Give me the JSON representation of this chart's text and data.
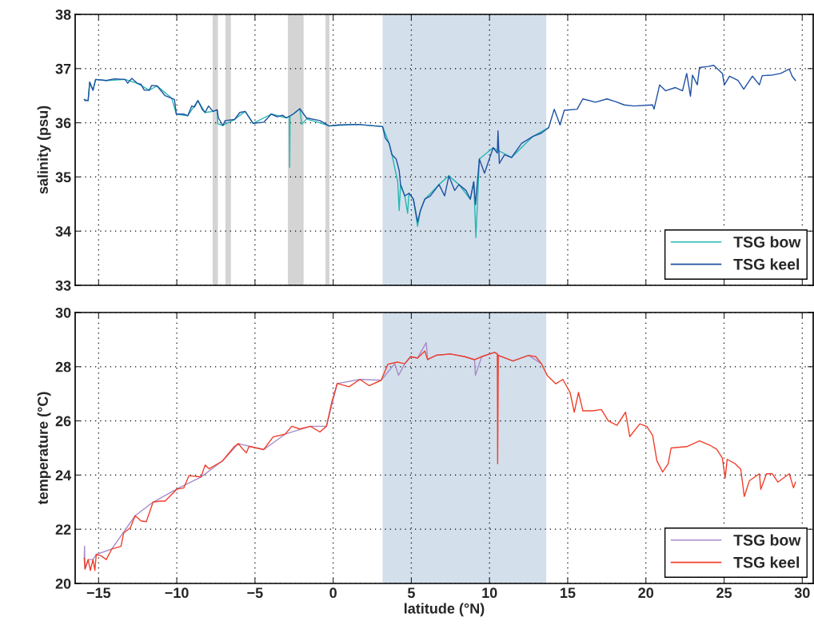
{
  "chart_data": [
    {
      "type": "line",
      "ylabel": "salinity (psu)",
      "xlim": [
        -16.5,
        30.7
      ],
      "ylim": [
        33,
        38
      ],
      "xticks": [
        -15,
        -10,
        -5,
        0,
        5,
        10,
        15,
        20,
        25,
        30
      ],
      "yticks": [
        33,
        34,
        35,
        36,
        37,
        38
      ],
      "tick_labels": "y",
      "grid": true,
      "legend": "bottom right",
      "line_style": "solid",
      "bands": [
        {
          "axis": "x",
          "from": -7.71,
          "to": -7.37,
          "color": "#d4d4d4"
        },
        {
          "axis": "x",
          "from": -6.89,
          "to": -6.54,
          "color": "#d4d4d4"
        },
        {
          "axis": "x",
          "from": -2.9,
          "to": -1.89,
          "color": "#d4d4d4"
        },
        {
          "axis": "x",
          "from": -0.49,
          "to": -0.24,
          "color": "#d4d4d4"
        },
        {
          "axis": "x",
          "from": 3.16,
          "to": 13.63,
          "color": "#d4dfec"
        }
      ],
      "series": [
        {
          "name": "TSG bow",
          "color": "#22b8b0",
          "x": [
            -15.92,
            -15.67,
            -15.57,
            -15.36,
            -15.19,
            -14.5,
            -13.31,
            -12.54,
            -11.77,
            -11.26,
            -10.32,
            -10.03,
            -9.3,
            -8.65,
            -8.19,
            -7.68,
            -7.42,
            -7.38,
            -7.05,
            -6.31,
            -5.63,
            -5.12,
            -3.96,
            -2.99,
            -2.8,
            -2.78,
            -2.76,
            -2.56,
            -2.13,
            -2.01,
            -1.71,
            -0.85,
            -0.26,
            1.54,
            3.16,
            3.58,
            3.76,
            4.13,
            4.22,
            4.31,
            4.58,
            4.76,
            4.85,
            5.13,
            5.4,
            5.58,
            5.86,
            6.77,
            7.4,
            8.04,
            8.77,
            8.99,
            9.13,
            9.35,
            10.23,
            11.41,
            12.78,
            13.78
          ],
          "values": [
            36.43,
            36.41,
            36.75,
            36.6,
            36.8,
            36.78,
            36.8,
            36.73,
            36.6,
            36.68,
            36.45,
            36.16,
            36.13,
            36.41,
            36.19,
            36.21,
            36.24,
            35.98,
            35.95,
            36.06,
            36.21,
            35.99,
            36.16,
            36.09,
            36.12,
            35.18,
            36.12,
            36.16,
            36.26,
            35.97,
            36.07,
            36.0,
            35.94,
            35.97,
            35.93,
            35.62,
            35.41,
            34.91,
            34.38,
            34.86,
            34.65,
            34.33,
            34.7,
            34.59,
            34.09,
            34.38,
            34.59,
            34.86,
            35.02,
            34.86,
            34.59,
            34.91,
            33.88,
            35.33,
            35.54,
            35.36,
            35.75,
            35.91
          ]
        },
        {
          "name": "TSG keel",
          "color": "#1e51a2",
          "x": [
            -15.92,
            -15.87,
            -15.67,
            -15.57,
            -15.36,
            -15.19,
            -14.5,
            -13.99,
            -13.31,
            -13.14,
            -12.88,
            -12.54,
            -12.29,
            -12.08,
            -11.77,
            -11.6,
            -11.26,
            -10.75,
            -10.32,
            -10.15,
            -10.03,
            -9.56,
            -9.3,
            -9.04,
            -8.87,
            -8.65,
            -8.36,
            -8.19,
            -7.97,
            -7.68,
            -7.42,
            -7.34,
            -7.05,
            -6.91,
            -6.31,
            -5.97,
            -5.63,
            -5.12,
            -4.44,
            -3.96,
            -3.58,
            -3.24,
            -2.99,
            -2.56,
            -2.13,
            -1.71,
            -0.85,
            -0.26,
            0.34,
            1.54,
            3.16,
            3.33,
            3.58,
            3.76,
            4.03,
            4.22,
            4.31,
            4.58,
            4.85,
            5.13,
            5.4,
            5.58,
            5.86,
            6.22,
            6.77,
            7.13,
            7.4,
            7.77,
            8.04,
            8.5,
            8.77,
            8.99,
            9.1,
            9.35,
            9.68,
            10.23,
            10.5,
            10.54,
            10.63,
            10.96,
            11.41,
            12.05,
            12.78,
            13.32,
            13.78,
            14.14,
            14.51,
            14.78,
            15.6,
            15.97,
            16.78,
            17.51,
            18.06,
            18.61,
            19.24,
            20.43,
            20.52,
            20.88,
            21.25,
            21.89,
            22.34,
            22.61,
            22.85,
            22.98,
            23.29,
            23.43,
            23.98,
            24.34,
            24.89,
            25.02,
            25.35,
            25.89,
            26.26,
            26.81,
            27.26,
            27.44,
            28.08,
            28.62,
            29.17,
            29.35,
            29.57
          ],
          "values": [
            36.43,
            36.41,
            36.41,
            36.75,
            36.6,
            36.8,
            36.78,
            36.81,
            36.8,
            36.73,
            36.82,
            36.73,
            36.71,
            36.6,
            36.6,
            36.69,
            36.68,
            36.5,
            36.45,
            36.43,
            36.16,
            36.16,
            36.13,
            36.31,
            36.29,
            36.41,
            36.24,
            36.19,
            36.31,
            36.21,
            36.24,
            36.09,
            35.95,
            36.04,
            36.06,
            36.19,
            36.21,
            35.99,
            36.01,
            36.16,
            36.11,
            36.14,
            36.09,
            36.16,
            36.26,
            36.09,
            36.04,
            35.94,
            35.96,
            35.97,
            35.93,
            35.72,
            35.62,
            35.41,
            35.33,
            35.12,
            34.86,
            34.65,
            34.7,
            34.59,
            34.17,
            34.38,
            34.59,
            34.65,
            34.86,
            34.65,
            35.02,
            34.75,
            34.86,
            34.75,
            34.59,
            34.91,
            34.49,
            35.33,
            35.07,
            35.54,
            35.44,
            35.85,
            35.25,
            35.41,
            35.36,
            35.62,
            35.75,
            35.81,
            35.91,
            36.25,
            35.96,
            36.23,
            36.25,
            36.44,
            36.38,
            36.44,
            36.39,
            36.33,
            36.31,
            36.33,
            36.25,
            36.7,
            36.59,
            36.65,
            36.59,
            36.91,
            36.49,
            36.88,
            36.7,
            37.02,
            37.04,
            37.06,
            36.91,
            36.7,
            36.86,
            36.78,
            36.62,
            36.86,
            36.7,
            36.87,
            36.88,
            36.91,
            36.99,
            36.86,
            36.78
          ]
        }
      ]
    },
    {
      "type": "line",
      "xlabel": "latitude (°N)",
      "ylabel": "temperature (°C)",
      "xlim": [
        -16.5,
        30.7
      ],
      "ylim": [
        20,
        30
      ],
      "xticks": [
        {
          "value": -15,
          "label": "−15"
        },
        {
          "value": -10,
          "label": "−10"
        },
        {
          "value": -5,
          "label": "−5"
        },
        0,
        5,
        10,
        15,
        20,
        25,
        30
      ],
      "yticks": [
        20,
        22,
        24,
        26,
        28,
        30
      ],
      "grid": true,
      "legend": "bottom right",
      "line_style": "solid",
      "bands": [
        {
          "axis": "x",
          "from": 3.16,
          "to": 13.63,
          "color": "#d4dfec"
        }
      ],
      "series": [
        {
          "name": "TSG bow",
          "color": "#a68bc9",
          "x": [
            -15.92,
            -15.9,
            -15.87,
            -15.67,
            -15.36,
            -15.15,
            -14.16,
            -12.66,
            -11.52,
            -9.98,
            -8.45,
            -7.08,
            -6.06,
            -4.44,
            -3.07,
            -1.45,
            -0.43,
            0.26,
            1.71,
            3.07,
            3.94,
            4.18,
            4.58,
            4.95,
            5.4,
            5.95,
            6.04,
            6.58,
            7.5,
            8.41,
            9.04,
            9.1,
            9.5,
            10.32,
            10.5,
            10.56,
            11.5,
            12.5,
            13.32
          ],
          "values": [
            20.93,
            21.37,
            20.53,
            20.88,
            20.88,
            21.07,
            21.27,
            22.5,
            23.0,
            23.49,
            23.93,
            24.52,
            25.16,
            24.94,
            25.51,
            25.8,
            25.8,
            27.38,
            27.53,
            27.5,
            28.11,
            27.68,
            28.11,
            28.37,
            28.32,
            28.89,
            28.26,
            28.42,
            28.47,
            28.37,
            28.26,
            27.68,
            28.37,
            28.53,
            28.47,
            28.42,
            28.21,
            28.42,
            28.11
          ]
        },
        {
          "name": "TSG keel",
          "color": "#f03f2b",
          "x": [
            -15.92,
            -15.87,
            -15.67,
            -15.53,
            -15.36,
            -15.24,
            -15.15,
            -14.85,
            -14.51,
            -14.16,
            -13.57,
            -13.4,
            -12.97,
            -12.66,
            -12.29,
            -11.95,
            -11.52,
            -11.09,
            -10.75,
            -10.41,
            -9.98,
            -9.56,
            -9.22,
            -8.45,
            -8.19,
            -7.94,
            -7.08,
            -6.31,
            -6.06,
            -5.8,
            -5.55,
            -5.38,
            -4.44,
            -3.84,
            -3.07,
            -2.65,
            -2.13,
            -1.45,
            -0.85,
            -0.43,
            -0.09,
            0.26,
            1.02,
            1.71,
            2.3,
            3.07,
            3.5,
            4.1,
            4.58,
            4.95,
            5.4,
            5.86,
            6.04,
            6.58,
            7.5,
            8.41,
            9.04,
            9.5,
            10.32,
            10.5,
            10.52,
            10.56,
            11.5,
            12.5,
            12.96,
            13.32,
            13.69,
            14.24,
            14.69,
            15.15,
            15.42,
            15.69,
            15.97,
            16.6,
            17.15,
            17.6,
            18.15,
            18.7,
            18.97,
            19.61,
            20.06,
            20.43,
            20.7,
            21.07,
            21.43,
            21.61,
            22.61,
            23.43,
            24.07,
            24.53,
            24.89,
            25.07,
            25.2,
            25.71,
            26.07,
            26.29,
            26.62,
            27.26,
            27.35,
            27.71,
            28.08,
            28.44,
            29.17,
            29.44,
            29.57
          ],
          "values": [
            20.93,
            20.53,
            20.88,
            20.48,
            20.88,
            20.48,
            21.07,
            21.02,
            20.88,
            21.27,
            21.37,
            21.86,
            22.06,
            22.5,
            22.31,
            22.28,
            23.0,
            23.04,
            23.04,
            23.24,
            23.49,
            23.52,
            23.98,
            23.93,
            24.37,
            24.23,
            24.52,
            25.06,
            25.16,
            24.97,
            24.82,
            25.06,
            24.94,
            25.41,
            25.51,
            25.8,
            25.7,
            25.8,
            25.59,
            25.8,
            26.69,
            27.38,
            27.26,
            27.53,
            27.3,
            27.5,
            28.09,
            28.17,
            28.11,
            28.37,
            28.32,
            28.58,
            28.26,
            28.42,
            28.47,
            28.37,
            28.26,
            28.37,
            28.53,
            28.47,
            24.42,
            28.42,
            28.21,
            28.42,
            28.37,
            28.11,
            27.68,
            27.37,
            27.53,
            27.05,
            26.32,
            27.05,
            26.37,
            26.37,
            26.42,
            26.0,
            25.84,
            26.32,
            25.42,
            25.89,
            25.79,
            25.47,
            24.53,
            24.11,
            24.42,
            25.0,
            25.05,
            25.26,
            25.11,
            24.95,
            24.63,
            23.89,
            24.58,
            24.42,
            24.21,
            23.21,
            23.79,
            24.05,
            23.47,
            24.05,
            24.05,
            23.74,
            24.05,
            23.53,
            23.74
          ]
        }
      ]
    }
  ]
}
